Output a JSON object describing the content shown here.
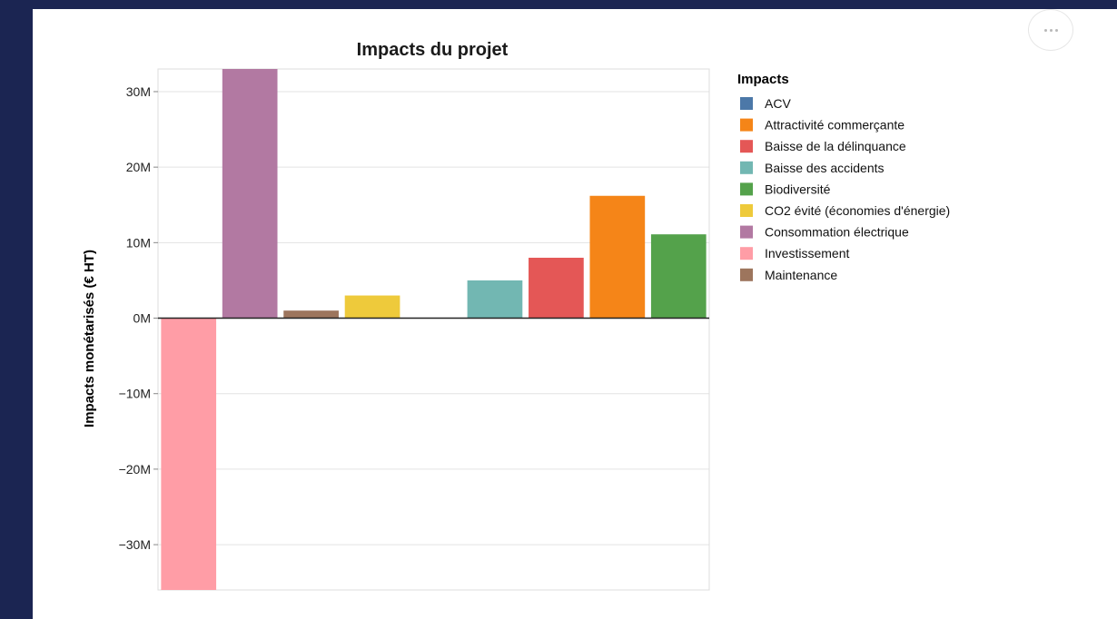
{
  "menu": {
    "icon": "more-horizontal-icon"
  },
  "chart_data": {
    "type": "bar",
    "title": "Impacts du projet",
    "xlabel": "",
    "ylabel": "Impacts monétarisés (€ HT)",
    "ylim": [
      -36000000,
      33000000
    ],
    "yticks": [
      -30000000,
      -20000000,
      -10000000,
      0,
      10000000,
      20000000,
      30000000
    ],
    "ytick_labels": [
      "−30M",
      "−20M",
      "−10M",
      "0M",
      "10M",
      "20M",
      "30M"
    ],
    "grid": true,
    "legend": {
      "title": "Impacts",
      "placement": "right",
      "entries": [
        {
          "label": "ACV",
          "color": "#4c78a8"
        },
        {
          "label": "Attractivité commerçante",
          "color": "#f58518"
        },
        {
          "label": "Baisse de la délinquance",
          "color": "#e45756"
        },
        {
          "label": "Baisse des accidents",
          "color": "#72b7b2"
        },
        {
          "label": "Biodiversité",
          "color": "#54a24b"
        },
        {
          "label": "CO2 évité (économies d'énergie)",
          "color": "#eeca3b"
        },
        {
          "label": "Consommation électrique",
          "color": "#b279a2"
        },
        {
          "label": "Investissement",
          "color": "#ff9da6"
        },
        {
          "label": "Maintenance",
          "color": "#9d755d"
        }
      ]
    },
    "categories": [
      "Investissement",
      "Consommation électrique",
      "Maintenance",
      "CO2 évité (économies d'énergie)",
      "ACV",
      "Baisse des accidents",
      "Baisse de la délinquance",
      "Attractivité commerçante",
      "Biodiversité"
    ],
    "values": [
      -36000000,
      33000000,
      1000000,
      3000000,
      0,
      5000000,
      8000000,
      16200000,
      11100000
    ],
    "colors": [
      "#ff9da6",
      "#b279a2",
      "#9d755d",
      "#eeca3b",
      "#4c78a8",
      "#72b7b2",
      "#e45756",
      "#f58518",
      "#54a24b"
    ]
  }
}
